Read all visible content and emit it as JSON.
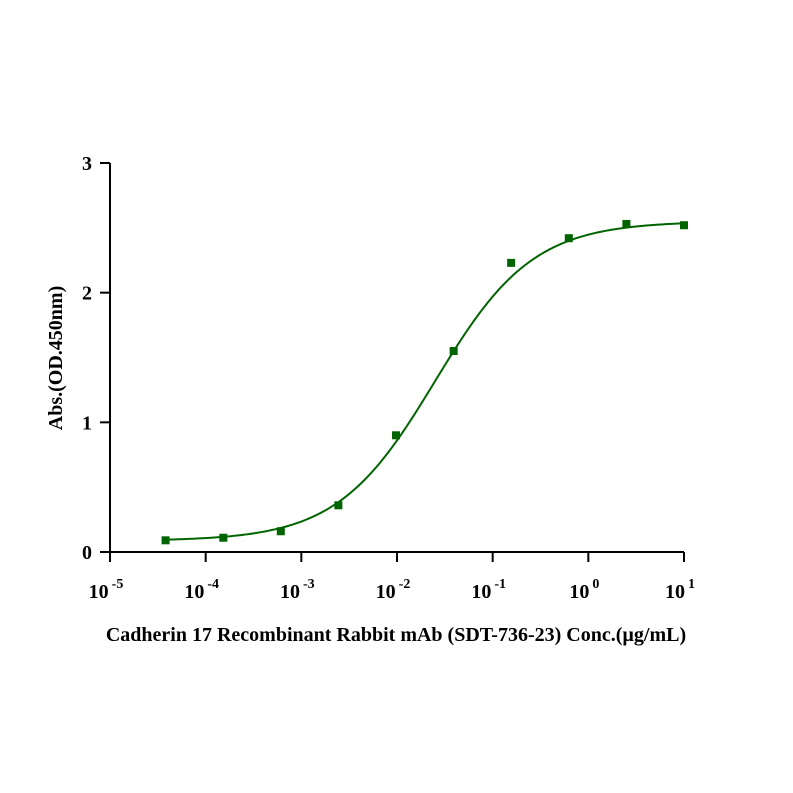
{
  "chart_data": {
    "type": "scatter",
    "title": "",
    "xlabel": "Cadherin 17 Recombinant Rabbit mAb (SDT-736-23) Conc.(µg/mL)",
    "ylabel": "Abs.(OD.450nm)",
    "x_scale": "log10",
    "xlim": [
      1e-05,
      10
    ],
    "ylim": [
      0,
      3
    ],
    "x_ticks": [
      {
        "base": "10",
        "exp": "-5"
      },
      {
        "base": "10",
        "exp": "-4"
      },
      {
        "base": "10",
        "exp": "-3"
      },
      {
        "base": "10",
        "exp": "-2"
      },
      {
        "base": "10",
        "exp": "-1"
      },
      {
        "base": "10",
        "exp": "0"
      },
      {
        "base": "10",
        "exp": "1"
      }
    ],
    "y_ticks": [
      "0",
      "1",
      "2",
      "3"
    ],
    "grid": false,
    "color": "#006400",
    "series": [
      {
        "marker": "square",
        "fit": "sigmoidal",
        "x": [
          3.81e-05,
          0.000153,
          0.00061,
          0.00244,
          0.00977,
          0.0391,
          0.156,
          0.625,
          2.5,
          10
        ],
        "y": [
          0.09,
          0.11,
          0.16,
          0.36,
          0.9,
          1.55,
          2.23,
          2.42,
          2.53,
          2.52
        ]
      }
    ],
    "fit_params": {
      "bottom": 0.085,
      "top": 2.55,
      "ec50": 0.025,
      "hill": 0.85
    }
  }
}
